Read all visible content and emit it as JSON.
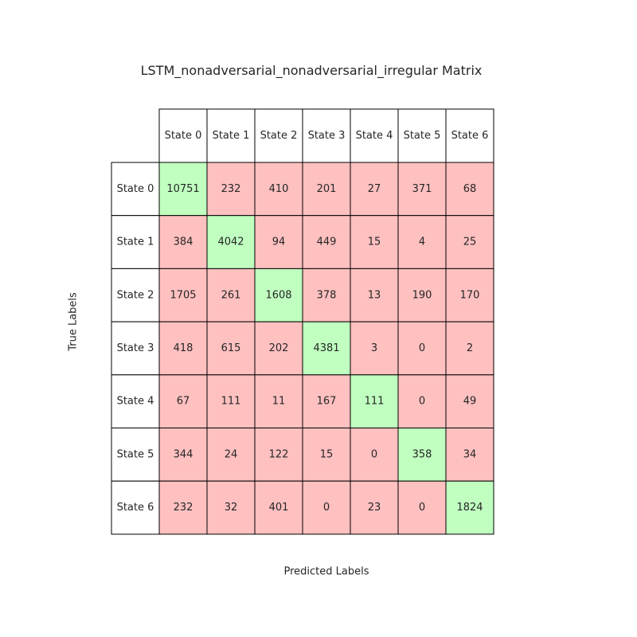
{
  "chart_data": {
    "type": "table",
    "title": "LSTM_nonadversarial_nonadversarial_irregular Matrix",
    "xlabel": "Predicted Labels",
    "ylabel": "True Labels",
    "columns": [
      "State 0",
      "State 1",
      "State 2",
      "State 3",
      "State 4",
      "State 5",
      "State 6"
    ],
    "rows": [
      "State 0",
      "State 1",
      "State 2",
      "State 3",
      "State 4",
      "State 5",
      "State 6"
    ],
    "values": [
      [
        10751,
        232,
        410,
        201,
        27,
        371,
        68
      ],
      [
        384,
        4042,
        94,
        449,
        15,
        4,
        25
      ],
      [
        1705,
        261,
        1608,
        378,
        13,
        190,
        170
      ],
      [
        418,
        615,
        202,
        4381,
        3,
        0,
        2
      ],
      [
        67,
        111,
        11,
        167,
        111,
        0,
        49
      ],
      [
        344,
        24,
        122,
        15,
        0,
        358,
        34
      ],
      [
        232,
        32,
        401,
        0,
        23,
        0,
        1824
      ]
    ],
    "colors": {
      "diagonal": "#c0ffc0",
      "off_diagonal": "#ffc0c0",
      "header": "#ffffff",
      "border": "#000000"
    }
  }
}
